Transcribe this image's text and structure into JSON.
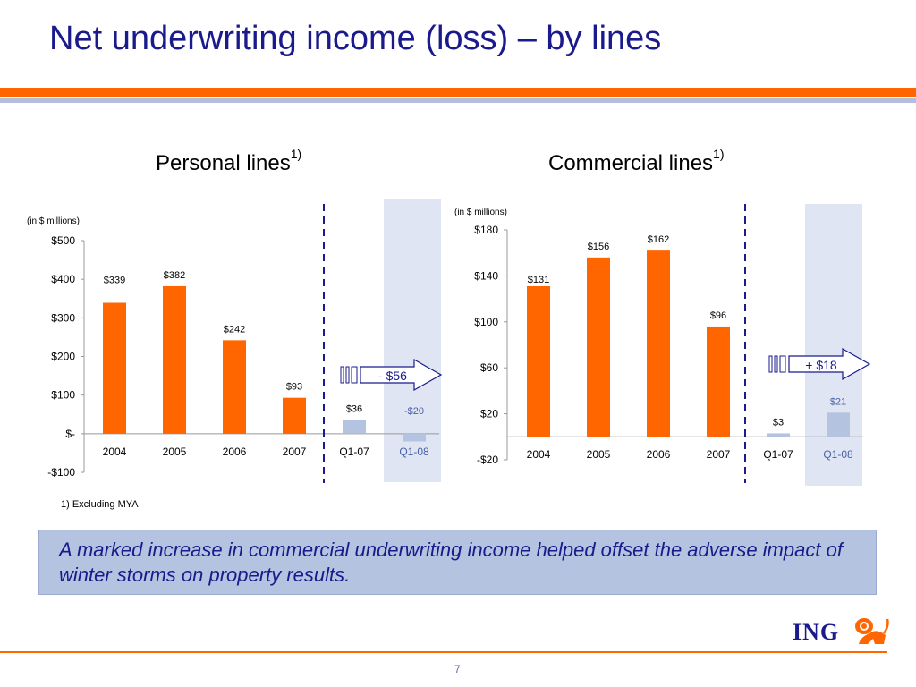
{
  "slide": {
    "title": "Net underwriting income (loss) – by lines",
    "footnote": "1) Excluding MYA",
    "callout": "A marked increase in commercial underwriting income helped offset the adverse impact of winter storms on property results.",
    "logo_text": "ING",
    "page_number": "7",
    "colors": {
      "title": "#1a1a8c",
      "accent": "#ff6600",
      "light_blue": "#b3bedf",
      "bar": "#ff6600",
      "quarter_bar": "#b4c3e0",
      "highlight": "#dfe5f2"
    },
    "icons": [
      "lion-logo-icon",
      "right-arrow-icon"
    ]
  },
  "chart_data": [
    {
      "type": "bar",
      "title": "Personal lines",
      "title_note": "1)",
      "unit_label": "(in $ millions)",
      "categories": [
        "2004",
        "2005",
        "2006",
        "2007",
        "Q1-07",
        "Q1-08"
      ],
      "values": [
        339,
        382,
        242,
        93,
        36,
        -20
      ],
      "value_labels": [
        "$339",
        "$382",
        "$242",
        "$93",
        "$36",
        "-$20"
      ],
      "ylim": [
        -100,
        500
      ],
      "yticks": [
        500,
        400,
        300,
        200,
        100,
        0,
        -100
      ],
      "ytick_labels": [
        "$500",
        "$400",
        "$300",
        "$200",
        "$100",
        "$-",
        "-$100"
      ],
      "highlight_category": "Q1-08",
      "annotation": "- $56",
      "grid": false,
      "legend": "none"
    },
    {
      "type": "bar",
      "title": "Commercial lines",
      "title_note": "1)",
      "unit_label": "(in $ millions)",
      "categories": [
        "2004",
        "2005",
        "2006",
        "2007",
        "Q1-07",
        "Q1-08"
      ],
      "values": [
        131,
        156,
        162,
        96,
        3,
        21
      ],
      "value_labels": [
        "$131",
        "$156",
        "$162",
        "$96",
        "$3",
        "$21"
      ],
      "ylim": [
        -20,
        180
      ],
      "yticks": [
        180,
        140,
        100,
        60,
        20,
        -20
      ],
      "ytick_labels": [
        "$180",
        "$140",
        "$100",
        "$60",
        "$20",
        "-$20"
      ],
      "highlight_category": "Q1-08",
      "annotation": "+ $18",
      "grid": false,
      "legend": "none"
    }
  ]
}
